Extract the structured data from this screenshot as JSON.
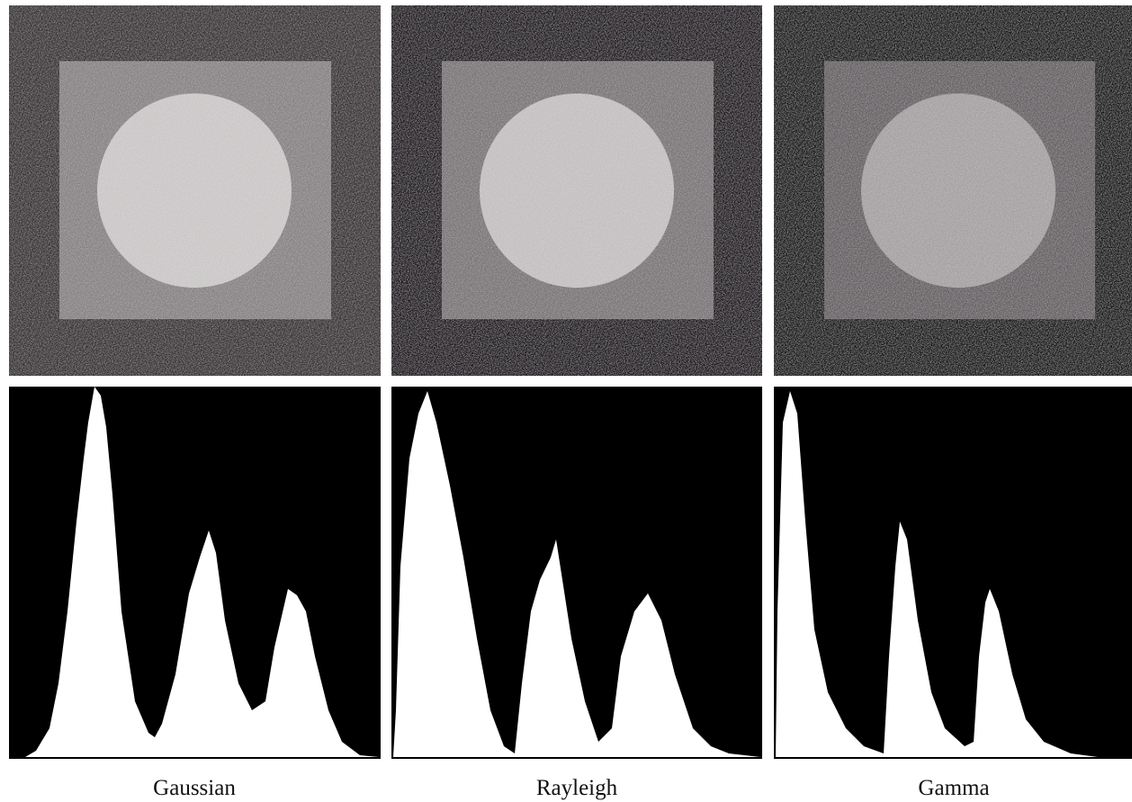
{
  "captions": [
    "Gaussian",
    "Rayleigh",
    "Gamma"
  ]
}
